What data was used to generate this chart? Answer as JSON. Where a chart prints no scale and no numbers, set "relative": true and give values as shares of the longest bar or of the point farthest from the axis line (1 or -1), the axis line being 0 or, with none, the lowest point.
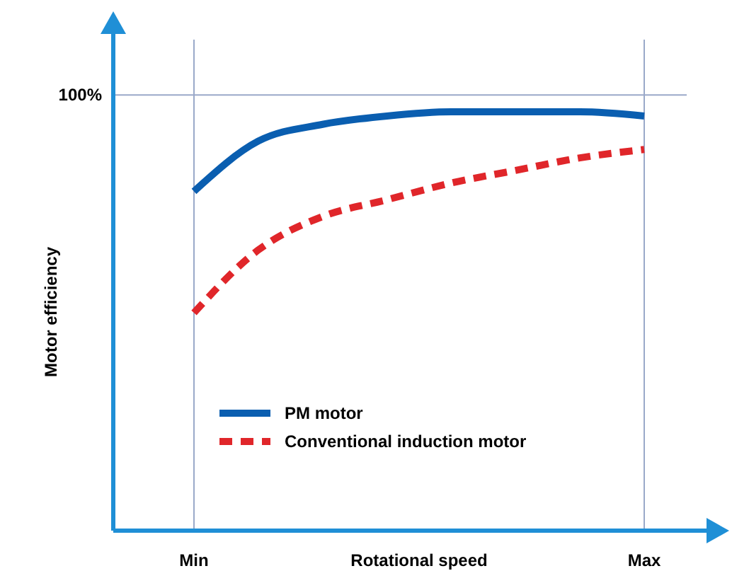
{
  "chart_data": {
    "type": "line",
    "relative": true,
    "xlabel": "Rotational speed",
    "ylabel": "Motor efficiency",
    "categories": [
      "Min",
      null,
      null,
      null,
      null,
      null,
      null,
      "Max"
    ],
    "grid": "x",
    "legend": "bottom",
    "ref_lines": [
      {
        "axis": "y",
        "value": 1.04,
        "color": "#9aa9c9"
      }
    ],
    "annotations": [
      "100%"
    ],
    "series": [
      {
        "name": "PM motor",
        "color": "#0a5eb0",
        "line_style": "solid",
        "values": [
          0.81,
          0.93,
          0.97,
          0.99,
          1,
          1,
          1,
          0.99
        ]
      },
      {
        "name": "Conventional induction motor",
        "color": "#e0262a",
        "line_style": "dashed",
        "values": [
          0.52,
          0.67,
          0.75,
          0.79,
          0.83,
          0.86,
          0.89,
          0.91
        ]
      }
    ]
  }
}
